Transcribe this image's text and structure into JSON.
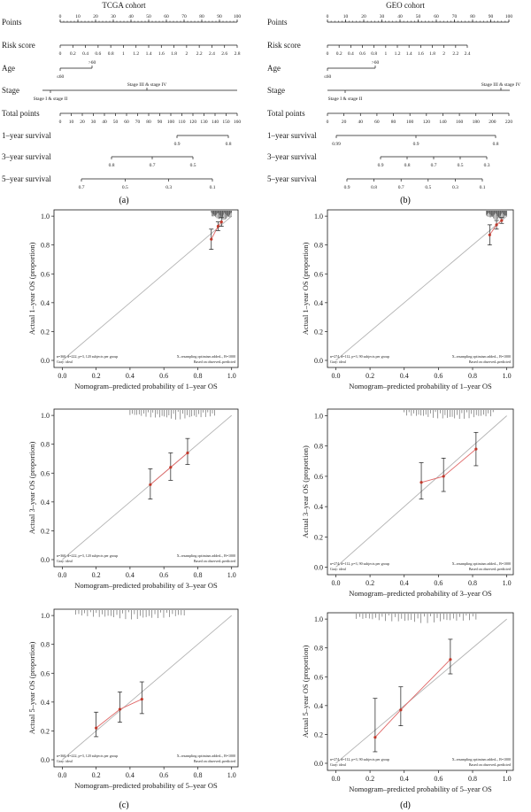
{
  "figure": {
    "panel_labels": [
      "(a)",
      "(b)",
      "(c)",
      "(d)"
    ]
  },
  "nomograms": [
    {
      "title": "TCGA cohort",
      "rows": [
        {
          "label": "Points",
          "ticks": [
            "0",
            "10",
            "20",
            "30",
            "40",
            "50",
            "60",
            "70",
            "80",
            "90",
            "100"
          ],
          "tick_side": "above"
        },
        {
          "label": "Risk score",
          "ticks": [
            "0",
            "0.2",
            "0.4",
            "0.6",
            "0.8",
            "1",
            "1.2",
            "1.4",
            "1.6",
            "1.8",
            "2",
            "2.2",
            "2.4",
            "2.6",
            "2.8"
          ],
          "tick_side": "below"
        },
        {
          "label": "Age",
          "ticks": [
            "≤60",
            ">60"
          ],
          "tick_side": "both"
        },
        {
          "label": "Stage",
          "ticks": [
            "Stage I & stage II",
            "Stage III & stage IV"
          ],
          "tick_side": "both"
        },
        {
          "label": "Total points",
          "ticks": [
            "0",
            "10",
            "20",
            "30",
            "40",
            "50",
            "60",
            "70",
            "80",
            "90",
            "100",
            "110",
            "120",
            "130",
            "140",
            "150",
            "160"
          ],
          "tick_side": "below"
        },
        {
          "label": "1–year survival",
          "ticks": [
            "0.9",
            "0.8"
          ],
          "tick_side": "below"
        },
        {
          "label": "3–year survival",
          "ticks": [
            "0.8",
            "0.7",
            "0.5"
          ],
          "tick_side": "below"
        },
        {
          "label": "5–year survival",
          "ticks": [
            "0.7",
            "0.5",
            "0.3",
            "0.1"
          ],
          "tick_side": "below"
        }
      ]
    },
    {
      "title": "GEO cohort",
      "rows": [
        {
          "label": "Points",
          "ticks": [
            "0",
            "10",
            "20",
            "30",
            "40",
            "50",
            "60",
            "70",
            "80",
            "90",
            "100"
          ],
          "tick_side": "above"
        },
        {
          "label": "Risk score",
          "ticks": [
            "0",
            "0.2",
            "0.4",
            "0.6",
            "0.8",
            "1",
            "1.2",
            "1.4",
            "1.6",
            "1.8",
            "2",
            "2.2",
            "2.4"
          ],
          "tick_side": "below"
        },
        {
          "label": "Age",
          "ticks": [
            "≤60",
            ">60"
          ],
          "tick_side": "both"
        },
        {
          "label": "Stage",
          "ticks": [
            "Stage I & stage II",
            "Stage III & stage IV"
          ],
          "tick_side": "both"
        },
        {
          "label": "Total points",
          "ticks": [
            "0",
            "20",
            "40",
            "60",
            "80",
            "100",
            "120",
            "140",
            "160",
            "180",
            "200",
            "220"
          ],
          "tick_side": "below"
        },
        {
          "label": "1–year survival",
          "ticks": [
            "0.99",
            "0.9",
            "0.8"
          ],
          "tick_side": "below"
        },
        {
          "label": "3–year survival",
          "ticks": [
            "0.9",
            "0.8",
            "0.7",
            "0.5",
            "0.3"
          ],
          "tick_side": "below"
        },
        {
          "label": "5–year survival",
          "ticks": [
            "0.9",
            "0.8",
            "0.7",
            "0.5",
            "0.3",
            "0.1"
          ],
          "tick_side": "below"
        }
      ]
    }
  ],
  "chart_data": [
    {
      "type": "scatter",
      "panel": "(c)",
      "cohort": "TCGA",
      "xlabel": "Nomogram–predicted probability of 1–year OS",
      "ylabel": "Actual 1–year OS (proportion)",
      "xlim": [
        0,
        1.0
      ],
      "ylim": [
        0,
        1.0
      ],
      "xticks": [
        "0.0",
        "0.2",
        "0.4",
        "0.6",
        "0.8",
        "1.0"
      ],
      "yticks": [
        "0.0",
        "0.2",
        "0.4",
        "0.6",
        "0.8",
        "1.0"
      ],
      "ideal_line": true,
      "points": [
        {
          "x": 0.88,
          "y": 0.84,
          "lo": 0.77,
          "hi": 0.91
        },
        {
          "x": 0.92,
          "y": 0.93,
          "lo": 0.9,
          "hi": 0.96
        },
        {
          "x": 0.94,
          "y": 0.96,
          "lo": 0.93,
          "hi": 0.99
        }
      ],
      "histogram_region": [
        0.88,
        1.0
      ],
      "note_left": [
        "n=360, d=222, p=3, 120 subjects per group",
        "Gray: ideal"
      ],
      "note_right": [
        "X–resampling optimism added–, B=1000",
        "Based on observed–predicted"
      ]
    },
    {
      "type": "scatter",
      "panel": "(d)",
      "cohort": "GEO",
      "xlabel": "Nomogram–predicted probability of 1–year OS",
      "ylabel": "Actual 1–year OS (proportion)",
      "xlim": [
        0,
        1.0
      ],
      "ylim": [
        0,
        1.0
      ],
      "xticks": [
        "0.0",
        "0.2",
        "0.4",
        "0.6",
        "0.8",
        "1.0"
      ],
      "yticks": [
        "0.0",
        "0.2",
        "0.4",
        "0.6",
        "0.8",
        "1.0"
      ],
      "ideal_line": true,
      "points": [
        {
          "x": 0.9,
          "y": 0.87,
          "lo": 0.8,
          "hi": 0.94
        },
        {
          "x": 0.94,
          "y": 0.94,
          "lo": 0.91,
          "hi": 0.97
        },
        {
          "x": 0.97,
          "y": 0.97,
          "lo": 0.95,
          "hi": 0.99
        }
      ],
      "histogram_region": [
        0.88,
        1.0
      ],
      "note_left": [
        "n=274, d=112, p=3, 90 subjects per group",
        "Gray: ideal"
      ],
      "note_right": [
        "X–resampling optimism added–, B=1000",
        "Based on observed–predicted"
      ]
    },
    {
      "type": "scatter",
      "panel": "(c)",
      "cohort": "TCGA",
      "xlabel": "Nomogram–predicted probability of 3–year OS",
      "ylabel": "Actual 3–year OS (proportion)",
      "xlim": [
        0,
        1.0
      ],
      "ylim": [
        0,
        1.0
      ],
      "xticks": [
        "0.0",
        "0.2",
        "0.4",
        "0.6",
        "0.8",
        "1.0"
      ],
      "yticks": [
        "0.0",
        "0.2",
        "0.4",
        "0.6",
        "0.8",
        "1.0"
      ],
      "ideal_line": true,
      "points": [
        {
          "x": 0.52,
          "y": 0.52,
          "lo": 0.42,
          "hi": 0.63
        },
        {
          "x": 0.64,
          "y": 0.64,
          "lo": 0.55,
          "hi": 0.74
        },
        {
          "x": 0.74,
          "y": 0.74,
          "lo": 0.66,
          "hi": 0.84
        }
      ],
      "histogram_region": [
        0.4,
        0.9
      ],
      "note_left": [
        "n=360, d=222, p=3, 120 subjects per group",
        "Gray: ideal"
      ],
      "note_right": [
        "X–resampling optimism added–, B=1000",
        "Based on observed–predicted"
      ]
    },
    {
      "type": "scatter",
      "panel": "(d)",
      "cohort": "GEO",
      "xlabel": "Nomogram–predicted probability of 3–year OS",
      "ylabel": "Actual 3–year OS (proportion)",
      "xlim": [
        0,
        1.0
      ],
      "ylim": [
        0,
        1.0
      ],
      "xticks": [
        "0.0",
        "0.2",
        "0.4",
        "0.6",
        "0.8",
        "1.0"
      ],
      "yticks": [
        "0.0",
        "0.2",
        "0.4",
        "0.6",
        "0.8",
        "1.0"
      ],
      "ideal_line": true,
      "points": [
        {
          "x": 0.5,
          "y": 0.56,
          "lo": 0.45,
          "hi": 0.69
        },
        {
          "x": 0.63,
          "y": 0.6,
          "lo": 0.5,
          "hi": 0.72
        },
        {
          "x": 0.82,
          "y": 0.78,
          "lo": 0.67,
          "hi": 0.89
        }
      ],
      "histogram_region": [
        0.4,
        0.92
      ],
      "note_left": [
        "n=274, d=112, p=3, 90 subjects per group",
        "Gray: ideal"
      ],
      "note_right": [
        "X–resampling optimism added–, B=1000",
        "Based on observed–predicted"
      ]
    },
    {
      "type": "scatter",
      "panel": "(c)",
      "cohort": "TCGA",
      "xlabel": "Nomogram–predicted probability of 5–year OS",
      "ylabel": "Actual 5–year OS (proportion)",
      "xlim": [
        0,
        1.0
      ],
      "ylim": [
        0,
        1.0
      ],
      "xticks": [
        "0.0",
        "0.2",
        "0.4",
        "0.6",
        "0.8",
        "1.0"
      ],
      "yticks": [
        "0.0",
        "0.2",
        "0.4",
        "0.6",
        "0.8",
        "1.0"
      ],
      "ideal_line": true,
      "points": [
        {
          "x": 0.2,
          "y": 0.22,
          "lo": 0.16,
          "hi": 0.33
        },
        {
          "x": 0.34,
          "y": 0.35,
          "lo": 0.26,
          "hi": 0.47
        },
        {
          "x": 0.47,
          "y": 0.42,
          "lo": 0.32,
          "hi": 0.54
        }
      ],
      "histogram_region": [
        0.08,
        0.72
      ],
      "note_left": [
        "n=360, d=222, p=3, 120 subjects per group",
        "Gray: ideal"
      ],
      "note_right": [
        "X–resampling optimism added–, B=1000",
        "Based on observed–predicted"
      ]
    },
    {
      "type": "scatter",
      "panel": "(d)",
      "cohort": "GEO",
      "xlabel": "Nomogram–predicted probability of 5–year OS",
      "ylabel": "Actual 5–year OS (proportion)",
      "xlim": [
        0,
        1.0
      ],
      "ylim": [
        0,
        1.0
      ],
      "xticks": [
        "0.0",
        "0.2",
        "0.4",
        "0.6",
        "0.8",
        "1.0"
      ],
      "yticks": [
        "0.0",
        "0.2",
        "0.4",
        "0.6",
        "0.8",
        "1.0"
      ],
      "ideal_line": true,
      "points": [
        {
          "x": 0.23,
          "y": 0.18,
          "lo": 0.08,
          "hi": 0.45
        },
        {
          "x": 0.38,
          "y": 0.37,
          "lo": 0.26,
          "hi": 0.53
        },
        {
          "x": 0.67,
          "y": 0.72,
          "lo": 0.62,
          "hi": 0.86
        }
      ],
      "histogram_region": [
        0.12,
        0.82
      ],
      "note_left": [
        "n=274, d=112, p=3, 90 subjects per group",
        "Gray: ideal"
      ],
      "note_right": [
        "X–resampling optimism added–, B=1000",
        "Based on observed–predicted"
      ]
    }
  ],
  "colors": {
    "ink": "#1a1a1a",
    "ideal_line": "#b3b3b3",
    "apparent_line": "#e06666",
    "point": "#c0392b",
    "histogram": "#555555"
  }
}
